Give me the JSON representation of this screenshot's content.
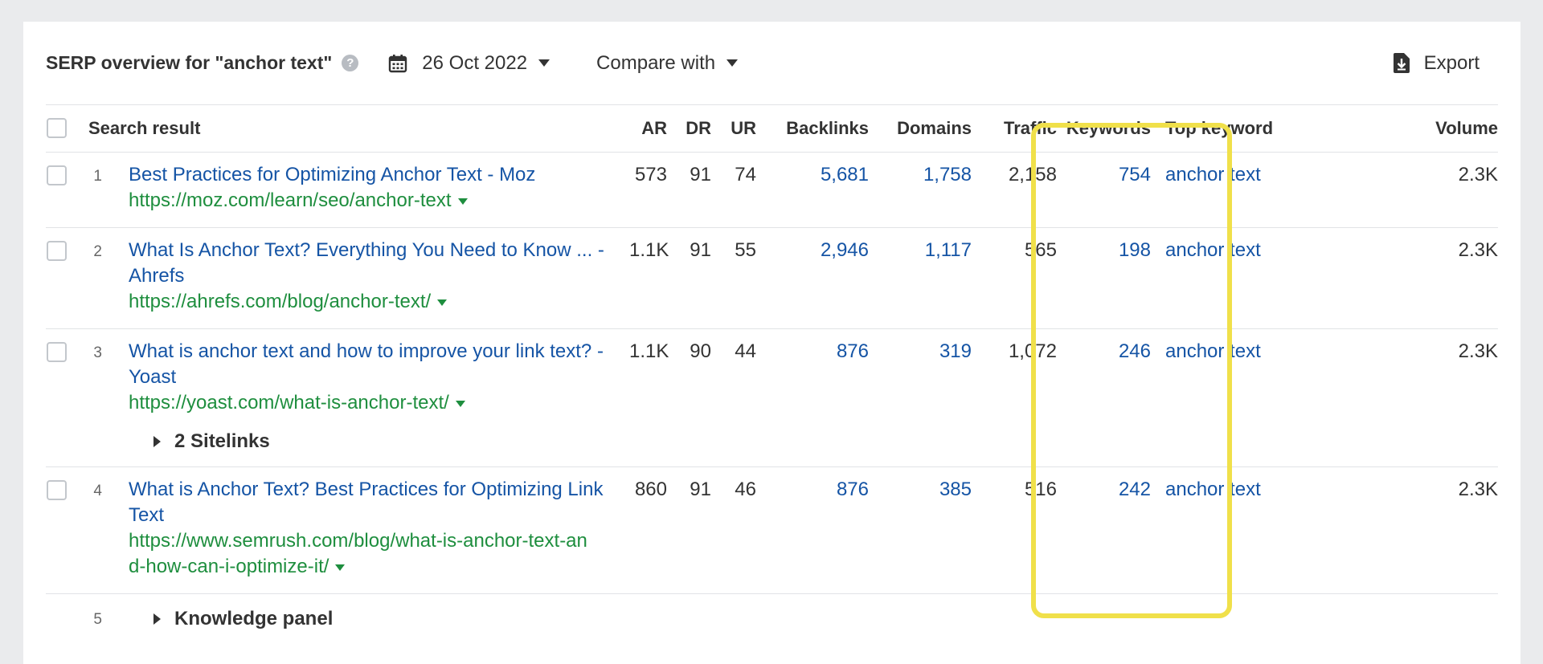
{
  "header": {
    "title": "SERP overview for \"anchor text\"",
    "help_icon": "question-circle-icon",
    "date": "26 Oct 2022",
    "compare_label": "Compare with",
    "export_label": "Export"
  },
  "columns": {
    "search_result": "Search result",
    "ar": "AR",
    "dr": "DR",
    "ur": "UR",
    "backlinks": "Backlinks",
    "domains": "Domains",
    "traffic": "Traffic",
    "keywords": "Keywords",
    "top_keyword": "Top keyword",
    "volume": "Volume"
  },
  "rows": [
    {
      "index": "1",
      "title": "Best Practices for Optimizing Anchor Text - Moz",
      "url": "https://moz.com/learn/seo/anchor-text",
      "ar": "573",
      "dr": "91",
      "ur": "74",
      "backlinks": "5,681",
      "domains": "1,758",
      "traffic": "2,158",
      "keywords": "754",
      "top_keyword": "anchor text",
      "volume": "2.3K"
    },
    {
      "index": "2",
      "title": "What Is Anchor Text? Everything You Need to Know ... - Ahrefs",
      "url": "https://ahrefs.com/blog/anchor-text/",
      "ar": "1.1K",
      "dr": "91",
      "ur": "55",
      "backlinks": "2,946",
      "domains": "1,117",
      "traffic": "565",
      "keywords": "198",
      "top_keyword": "anchor text",
      "volume": "2.3K"
    },
    {
      "index": "3",
      "title": "What is anchor text and how to improve your link text? - Yoast",
      "url": "https://yoast.com/what-is-anchor-text/",
      "ar": "1.1K",
      "dr": "90",
      "ur": "44",
      "backlinks": "876",
      "domains": "319",
      "traffic": "1,072",
      "keywords": "246",
      "top_keyword": "anchor text",
      "volume": "2.3K",
      "sitelinks": "2 Sitelinks"
    },
    {
      "index": "4",
      "title": "What is Anchor Text? Best Practices for Optimizing Link Text",
      "url_line1": "https://www.semrush.com/blog/what-is-anchor-text-an",
      "url_line2": "d-how-can-i-optimize-it/",
      "ar": "860",
      "dr": "91",
      "ur": "46",
      "backlinks": "876",
      "domains": "385",
      "traffic": "516",
      "keywords": "242",
      "top_keyword": "anchor text",
      "volume": "2.3K"
    }
  ],
  "knowledge_panel": {
    "index": "5",
    "label": "Knowledge panel"
  },
  "highlight_color": "#f0e04a"
}
